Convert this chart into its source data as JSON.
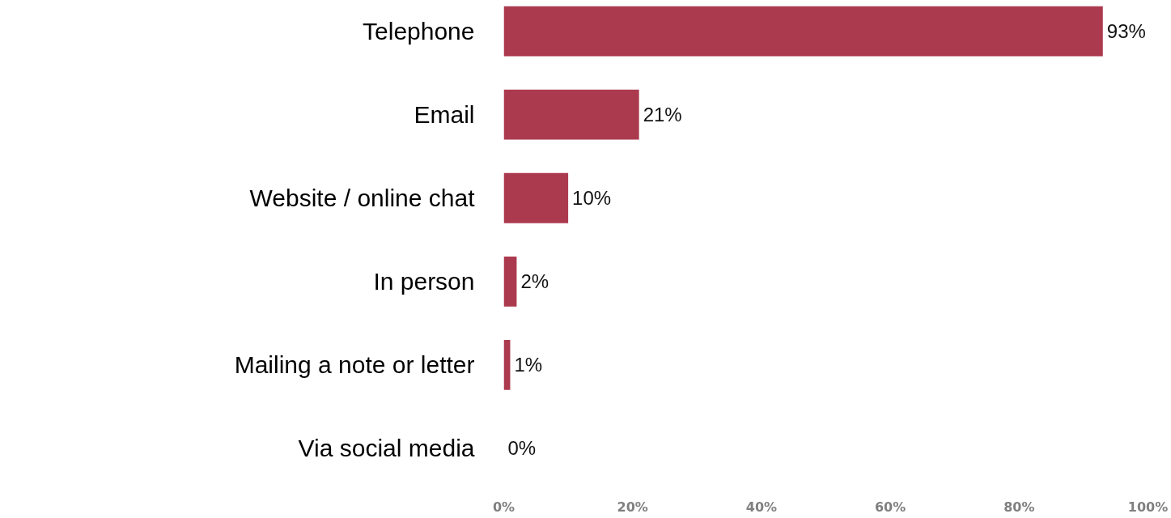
{
  "chart_data": {
    "type": "bar",
    "orientation": "horizontal",
    "categories": [
      "Telephone",
      "Email",
      "Website / online chat",
      "In person",
      "Mailing a note or letter",
      "Via social media"
    ],
    "values": [
      93,
      21,
      10,
      2,
      1,
      0
    ],
    "value_labels": [
      "93%",
      "21%",
      "10%",
      "2%",
      "1%",
      "0%"
    ],
    "color": "#ac3a4f",
    "xlim": [
      0,
      100
    ],
    "xticks": [
      {
        "value": 0,
        "label": "0%"
      },
      {
        "value": 20,
        "label": "20%"
      },
      {
        "value": 40,
        "label": "40%"
      },
      {
        "value": 60,
        "label": "60%"
      },
      {
        "value": 80,
        "label": "80%"
      },
      {
        "value": 100,
        "label": "100%"
      }
    ],
    "grid": false
  }
}
